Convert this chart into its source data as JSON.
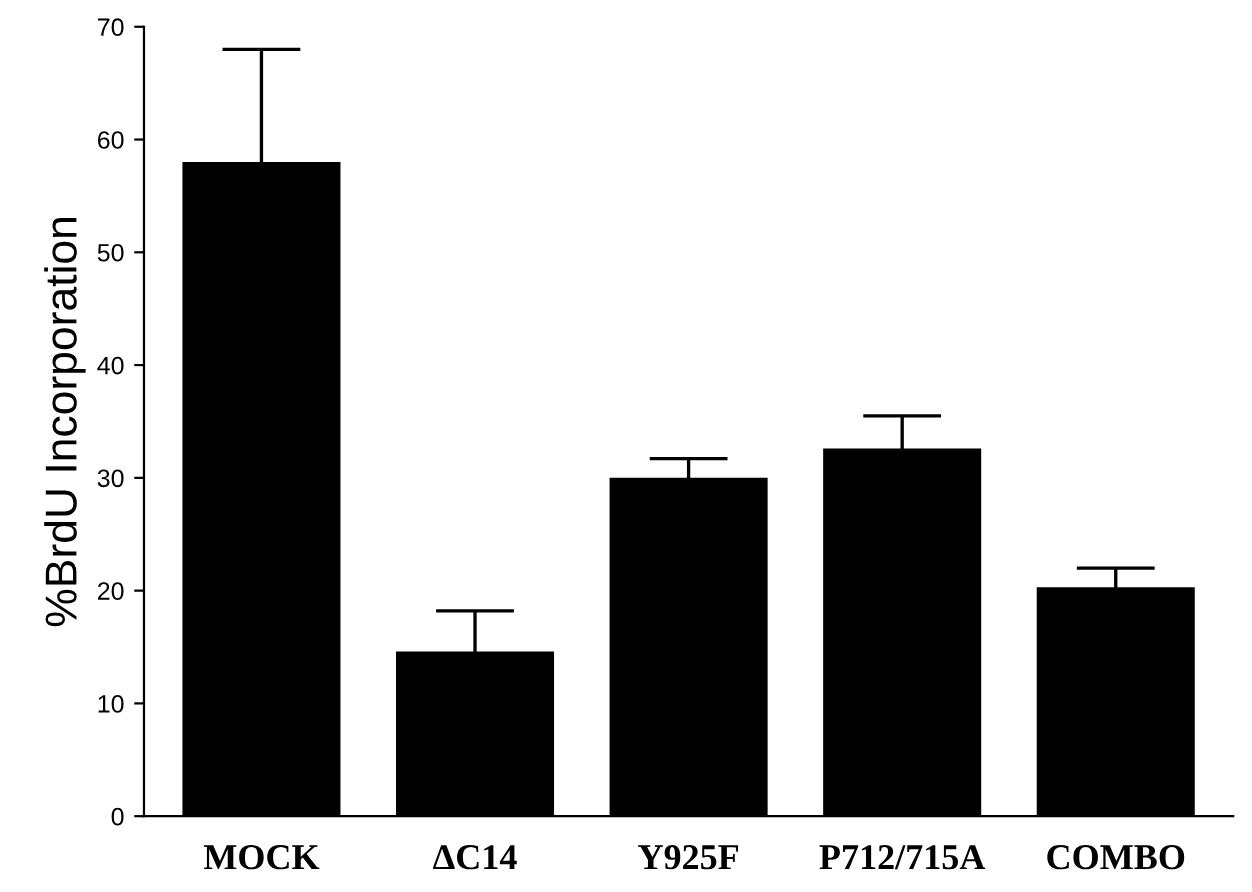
{
  "chart_data": {
    "type": "bar",
    "ylabel": "%BrdU Incorporation",
    "categories": [
      "MOCK",
      "ΔC14",
      "Y925F",
      "P712/715A",
      "COMBO"
    ],
    "values": [
      58,
      14.6,
      30,
      32.6,
      20.3
    ],
    "errors": [
      10,
      3.6,
      1.7,
      2.9,
      1.7
    ],
    "color": "#000000",
    "ylim": [
      0,
      70
    ],
    "yticks": [
      0,
      10,
      20,
      30,
      40,
      50,
      60,
      70
    ],
    "grid": false,
    "legend": false
  }
}
